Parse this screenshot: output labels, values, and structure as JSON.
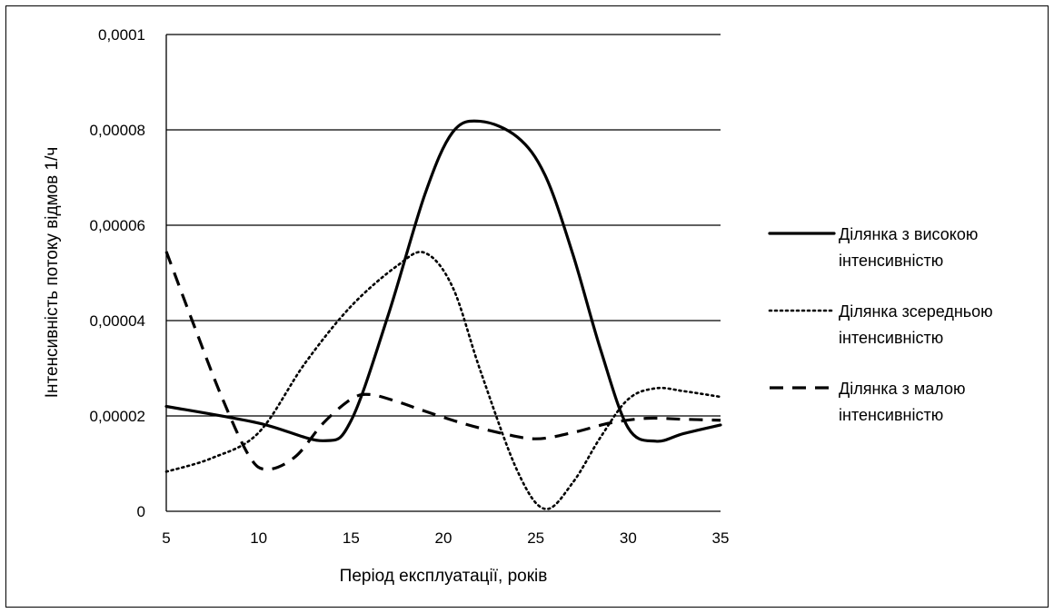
{
  "chart_data": {
    "type": "line",
    "title": "",
    "xlabel": "Період експлуатації, років",
    "ylabel": "Інтенсивність потоку відмов 1/ч",
    "xlim": [
      5,
      35
    ],
    "ylim": [
      0,
      0.0001
    ],
    "xticks": [
      5,
      10,
      15,
      20,
      25,
      30,
      35
    ],
    "yticks": [
      0,
      2e-05,
      4e-05,
      6e-05,
      8e-05,
      0.0001
    ],
    "xtick_labels": [
      "5",
      "10",
      "15",
      "20",
      "25",
      "30",
      "35"
    ],
    "ytick_labels": [
      "0",
      "0,00002",
      "0,00004",
      "0,00006",
      "0,00008",
      "0,0001"
    ],
    "grid": "horizontal major gridlines",
    "legend_position": "right",
    "series": [
      {
        "name": "Ділянка з високою інтенсивністю",
        "legend_lines": [
          "Ділянка з високою",
          "інтенсивністю"
        ],
        "style": "solid",
        "color": "#000000",
        "x": [
          5,
          10,
          13.5,
          15,
          17,
          19,
          20.5,
          22,
          24,
          25.5,
          27,
          28.5,
          30,
          31.5,
          33,
          35
        ],
        "y": [
          2.2e-05,
          1.85e-05,
          1.48e-05,
          1.9e-05,
          4.1e-05,
          6.65e-05,
          7.95e-05,
          8.18e-05,
          7.85e-05,
          7.05e-05,
          5.4e-05,
          3.4e-05,
          1.75e-05,
          1.47e-05,
          1.63e-05,
          1.81e-05
        ]
      },
      {
        "name": "Ділянка зсередньою інтенсивністю",
        "legend_lines": [
          "Ділянка зсередньою",
          "інтенсивністю"
        ],
        "style": "dotted",
        "color": "#000000",
        "x": [
          5,
          7.5,
          10,
          12.5,
          15,
          17.5,
          19,
          20.5,
          22,
          24,
          25.5,
          27,
          28.5,
          30,
          31.5,
          33,
          35
        ],
        "y": [
          8.3e-06,
          1.12e-05,
          1.65e-05,
          3.1e-05,
          4.3e-05,
          5.15e-05,
          5.42e-05,
          4.7e-05,
          2.95e-05,
          8.5e-06,
          5e-07,
          6e-06,
          1.55e-05,
          2.35e-05,
          2.58e-05,
          2.52e-05,
          2.4e-05
        ]
      },
      {
        "name": "Ділянка з малою інтенсивністю",
        "legend_lines": [
          "Ділянка з малою",
          "інтенсивністю"
        ],
        "style": "dashed",
        "color": "#000000",
        "x": [
          5,
          6.5,
          8,
          9.5,
          10.5,
          12,
          13.5,
          15,
          16,
          17.5,
          19,
          21,
          23,
          25,
          27,
          29,
          31,
          33,
          35
        ],
        "y": [
          5.45e-05,
          3.9e-05,
          2.4e-05,
          1.15e-05,
          8.8e-06,
          1.15e-05,
          1.85e-05,
          2.35e-05,
          2.45e-05,
          2.3e-05,
          2.1e-05,
          1.85e-05,
          1.65e-05,
          1.52e-05,
          1.65e-05,
          1.85e-05,
          1.95e-05,
          1.93e-05,
          1.91e-05
        ]
      }
    ]
  }
}
